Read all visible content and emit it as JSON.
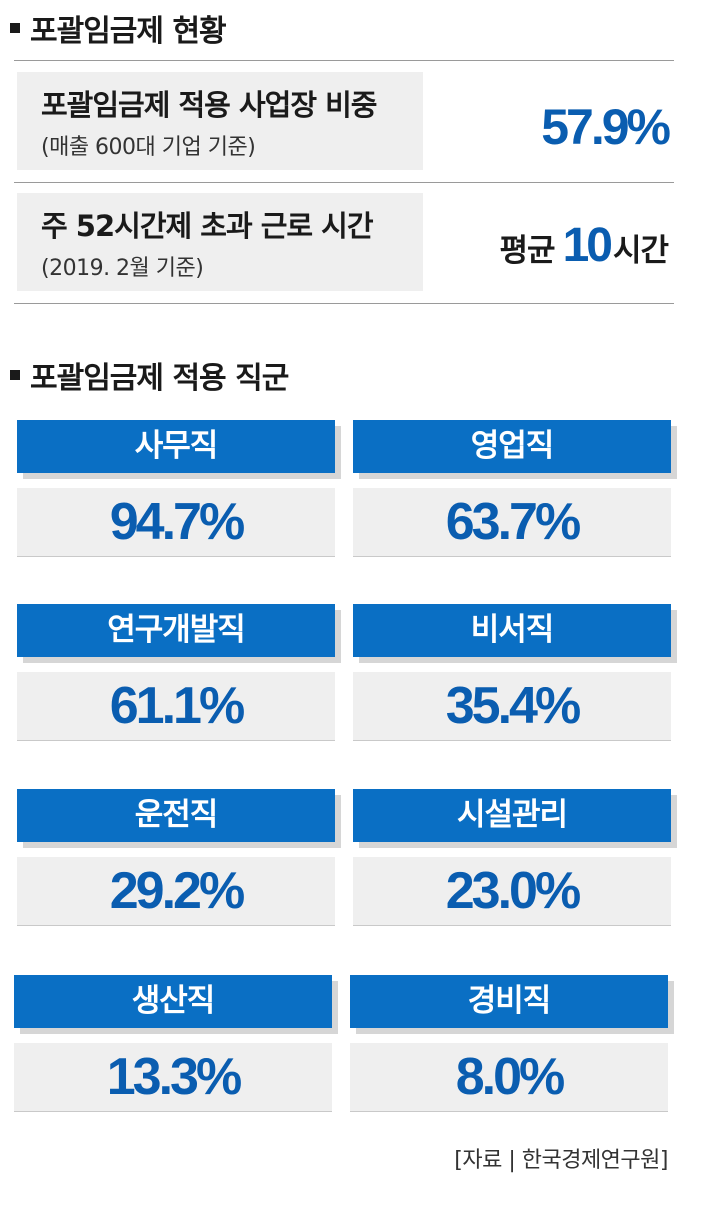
{
  "section1": {
    "title": "포괄임금제 현황",
    "stats": [
      {
        "label": "포괄임금제 적용 사업장 비중",
        "sub": "(매출 600대 기업 기준)",
        "value": "57.9%"
      },
      {
        "label": "주 52시간제 초과 근로 시간",
        "sub": "(2019. 2월 기준)",
        "value_prefix": "평균",
        "value_number": "10",
        "value_suffix": "시간"
      }
    ]
  },
  "section2": {
    "title": "포괄임금제 적용 직군",
    "items": [
      {
        "name": "사무직",
        "value": "94.7%"
      },
      {
        "name": "영업직",
        "value": "63.7%"
      },
      {
        "name": "연구개발직",
        "value": "61.1%"
      },
      {
        "name": "비서직",
        "value": "35.4%"
      },
      {
        "name": "운전직",
        "value": "29.2%"
      },
      {
        "name": "시설관리",
        "value": "23.0%"
      },
      {
        "name": "생산직",
        "value": "13.3%"
      },
      {
        "name": "경비직",
        "value": "8.0%"
      }
    ]
  },
  "source": "[자료 | 한국경제연구원]",
  "colors": {
    "accent": "#0a6fc4",
    "value_text": "#0a5db0",
    "box_bg": "#efefef"
  }
}
